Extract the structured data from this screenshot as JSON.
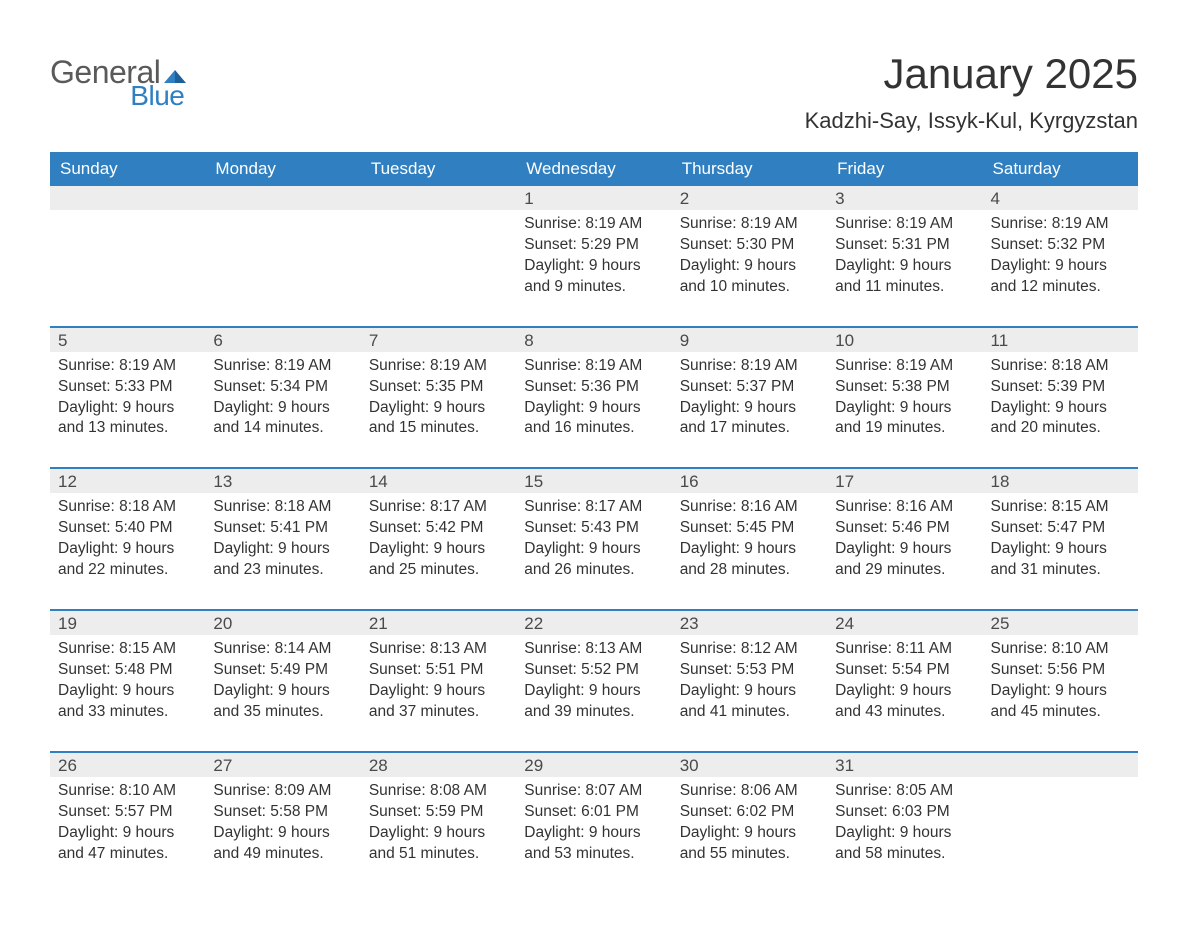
{
  "brand": {
    "general": "General",
    "blue": "Blue",
    "accent_color": "#2f7fc1"
  },
  "title": "January 2025",
  "location": "Kadzhi-Say, Issyk-Kul, Kyrgyzstan",
  "colors": {
    "header_bg": "#2f7fc1",
    "header_text": "#ffffff",
    "daynum_bg": "#ededed",
    "text": "#333333",
    "row_divider": "#2f7fc1"
  },
  "day_headers": [
    "Sunday",
    "Monday",
    "Tuesday",
    "Wednesday",
    "Thursday",
    "Friday",
    "Saturday"
  ],
  "weeks": [
    [
      null,
      null,
      null,
      {
        "n": "1",
        "sunrise": "8:19 AM",
        "sunset": "5:29 PM",
        "daylight": "9 hours and 9 minutes."
      },
      {
        "n": "2",
        "sunrise": "8:19 AM",
        "sunset": "5:30 PM",
        "daylight": "9 hours and 10 minutes."
      },
      {
        "n": "3",
        "sunrise": "8:19 AM",
        "sunset": "5:31 PM",
        "daylight": "9 hours and 11 minutes."
      },
      {
        "n": "4",
        "sunrise": "8:19 AM",
        "sunset": "5:32 PM",
        "daylight": "9 hours and 12 minutes."
      }
    ],
    [
      {
        "n": "5",
        "sunrise": "8:19 AM",
        "sunset": "5:33 PM",
        "daylight": "9 hours and 13 minutes."
      },
      {
        "n": "6",
        "sunrise": "8:19 AM",
        "sunset": "5:34 PM",
        "daylight": "9 hours and 14 minutes."
      },
      {
        "n": "7",
        "sunrise": "8:19 AM",
        "sunset": "5:35 PM",
        "daylight": "9 hours and 15 minutes."
      },
      {
        "n": "8",
        "sunrise": "8:19 AM",
        "sunset": "5:36 PM",
        "daylight": "9 hours and 16 minutes."
      },
      {
        "n": "9",
        "sunrise": "8:19 AM",
        "sunset": "5:37 PM",
        "daylight": "9 hours and 17 minutes."
      },
      {
        "n": "10",
        "sunrise": "8:19 AM",
        "sunset": "5:38 PM",
        "daylight": "9 hours and 19 minutes."
      },
      {
        "n": "11",
        "sunrise": "8:18 AM",
        "sunset": "5:39 PM",
        "daylight": "9 hours and 20 minutes."
      }
    ],
    [
      {
        "n": "12",
        "sunrise": "8:18 AM",
        "sunset": "5:40 PM",
        "daylight": "9 hours and 22 minutes."
      },
      {
        "n": "13",
        "sunrise": "8:18 AM",
        "sunset": "5:41 PM",
        "daylight": "9 hours and 23 minutes."
      },
      {
        "n": "14",
        "sunrise": "8:17 AM",
        "sunset": "5:42 PM",
        "daylight": "9 hours and 25 minutes."
      },
      {
        "n": "15",
        "sunrise": "8:17 AM",
        "sunset": "5:43 PM",
        "daylight": "9 hours and 26 minutes."
      },
      {
        "n": "16",
        "sunrise": "8:16 AM",
        "sunset": "5:45 PM",
        "daylight": "9 hours and 28 minutes."
      },
      {
        "n": "17",
        "sunrise": "8:16 AM",
        "sunset": "5:46 PM",
        "daylight": "9 hours and 29 minutes."
      },
      {
        "n": "18",
        "sunrise": "8:15 AM",
        "sunset": "5:47 PM",
        "daylight": "9 hours and 31 minutes."
      }
    ],
    [
      {
        "n": "19",
        "sunrise": "8:15 AM",
        "sunset": "5:48 PM",
        "daylight": "9 hours and 33 minutes."
      },
      {
        "n": "20",
        "sunrise": "8:14 AM",
        "sunset": "5:49 PM",
        "daylight": "9 hours and 35 minutes."
      },
      {
        "n": "21",
        "sunrise": "8:13 AM",
        "sunset": "5:51 PM",
        "daylight": "9 hours and 37 minutes."
      },
      {
        "n": "22",
        "sunrise": "8:13 AM",
        "sunset": "5:52 PM",
        "daylight": "9 hours and 39 minutes."
      },
      {
        "n": "23",
        "sunrise": "8:12 AM",
        "sunset": "5:53 PM",
        "daylight": "9 hours and 41 minutes."
      },
      {
        "n": "24",
        "sunrise": "8:11 AM",
        "sunset": "5:54 PM",
        "daylight": "9 hours and 43 minutes."
      },
      {
        "n": "25",
        "sunrise": "8:10 AM",
        "sunset": "5:56 PM",
        "daylight": "9 hours and 45 minutes."
      }
    ],
    [
      {
        "n": "26",
        "sunrise": "8:10 AM",
        "sunset": "5:57 PM",
        "daylight": "9 hours and 47 minutes."
      },
      {
        "n": "27",
        "sunrise": "8:09 AM",
        "sunset": "5:58 PM",
        "daylight": "9 hours and 49 minutes."
      },
      {
        "n": "28",
        "sunrise": "8:08 AM",
        "sunset": "5:59 PM",
        "daylight": "9 hours and 51 minutes."
      },
      {
        "n": "29",
        "sunrise": "8:07 AM",
        "sunset": "6:01 PM",
        "daylight": "9 hours and 53 minutes."
      },
      {
        "n": "30",
        "sunrise": "8:06 AM",
        "sunset": "6:02 PM",
        "daylight": "9 hours and 55 minutes."
      },
      {
        "n": "31",
        "sunrise": "8:05 AM",
        "sunset": "6:03 PM",
        "daylight": "9 hours and 58 minutes."
      },
      null
    ]
  ],
  "labels": {
    "sunrise": "Sunrise: ",
    "sunset": "Sunset: ",
    "daylight": "Daylight: "
  }
}
